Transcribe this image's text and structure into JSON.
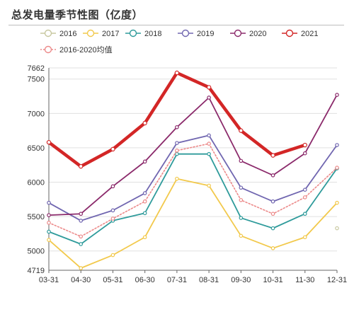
{
  "header": {
    "title": "总发电量季节性图（亿度）"
  },
  "chart_data": {
    "type": "line",
    "title": "总发电量季节性图（亿度）",
    "xlabel": "",
    "ylabel": "",
    "x": [
      "03-31",
      "04-30",
      "05-31",
      "06-30",
      "07-31",
      "08-31",
      "09-30",
      "10-31",
      "11-30",
      "12-31"
    ],
    "ylim": [
      4719,
      7662
    ],
    "yticks": [
      4719,
      5000,
      5500,
      6000,
      6500,
      7000,
      7500,
      7662
    ],
    "ytick_labels": [
      "4719",
      "5000",
      "5500",
      "6000",
      "6500",
      "7000",
      "7500",
      "7662"
    ],
    "grid": true,
    "legend_position": "top",
    "series": [
      {
        "name": "2016",
        "color": "#c8c8a0",
        "style": "solid",
        "values": [
          null,
          null,
          null,
          null,
          null,
          null,
          null,
          null,
          null,
          5330
        ]
      },
      {
        "name": "2017",
        "color": "#f2c94c",
        "style": "solid",
        "values": [
          5160,
          4750,
          4940,
          5200,
          6050,
          5950,
          5220,
          5040,
          5200,
          5700
        ]
      },
      {
        "name": "2018",
        "color": "#2f9b9b",
        "style": "solid",
        "values": [
          5280,
          5100,
          5440,
          5550,
          6410,
          6410,
          5480,
          5330,
          5540,
          6200
        ]
      },
      {
        "name": "2019",
        "color": "#7066b0",
        "style": "solid",
        "values": [
          5700,
          5440,
          5590,
          5840,
          6570,
          6680,
          5920,
          5720,
          5890,
          6540
        ]
      },
      {
        "name": "2020",
        "color": "#8b2a6b",
        "style": "solid",
        "values": [
          5520,
          5540,
          5940,
          6300,
          6800,
          7230,
          6310,
          6100,
          6420,
          7270
        ]
      },
      {
        "name": "2021",
        "color": "#d32626",
        "style": "bold",
        "values": [
          6580,
          6230,
          6480,
          6860,
          7590,
          7380,
          6750,
          6390,
          6540,
          null
        ]
      },
      {
        "name": "2016-2020均值",
        "color": "#ec8a8a",
        "style": "dotted",
        "values": [
          5410,
          5210,
          5470,
          5720,
          6460,
          6560,
          5740,
          5540,
          5780,
          6210
        ]
      }
    ]
  }
}
